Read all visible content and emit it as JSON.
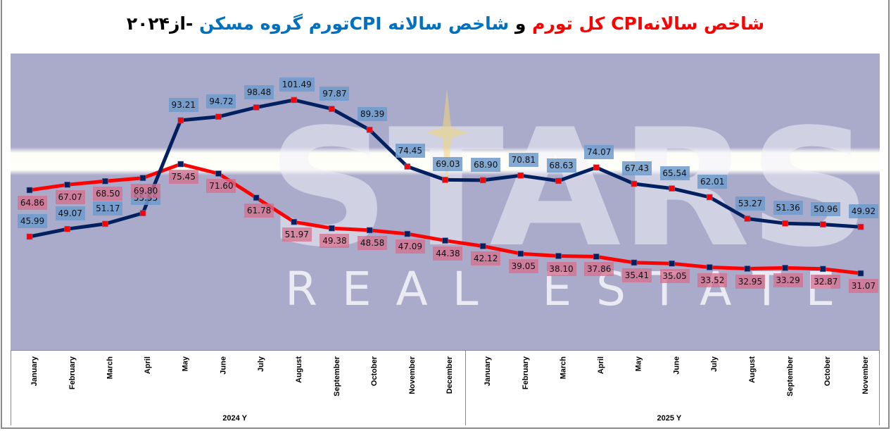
{
  "title": {
    "part_red_1": "شاخص سالانهCPI کل تورم",
    "part_black_1": " و ",
    "part_blue": "شاخص سالانه CPIتورم گروه مسکن",
    "part_black_2": "  -از۲۰۲۴"
  },
  "watermark": {
    "brand": "STARS",
    "subtitle": "REAL ESTATE"
  },
  "x_axis": {
    "year_groups": [
      {
        "label": "2024  Y",
        "months": [
          "January",
          "February",
          "March",
          "April",
          "May",
          "June",
          "July",
          "August",
          "September",
          "October",
          "November",
          "December"
        ]
      },
      {
        "label": "2025 Y",
        "months": [
          "January",
          "February",
          "March",
          "April",
          "May",
          "June",
          "July",
          "August",
          "September",
          "October",
          "November"
        ]
      }
    ]
  },
  "colors": {
    "plot_bg": "#aaaaca",
    "housing_line": "#002060",
    "housing_marker": "#ff0000",
    "total_line": "#ff0000",
    "total_marker": "#002060",
    "housing_label_bg": "#6e9bcd",
    "total_label_bg": "#d76e8c"
  },
  "chart_data": {
    "type": "line",
    "title": "شاخص سالانهCPI کل تورم و شاخص سالانه CPIتورم گروه مسکن -از۲۰۲۴",
    "xlabel": "",
    "ylabel": "",
    "grid": false,
    "legend": "none (series identified by title colors: red = total CPI inflation, blue = housing group CPI inflation)",
    "categories": [
      "2024 January",
      "2024 February",
      "2024 March",
      "2024 April",
      "2024 May",
      "2024 June",
      "2024 July",
      "2024 August",
      "2024 September",
      "2024 October",
      "2024 November",
      "2024 December",
      "2025 January",
      "2025 February",
      "2025 March",
      "2025 April",
      "2025 May",
      "2025 June",
      "2025 July",
      "2025 August",
      "2025 September",
      "2025 October",
      "2025 November"
    ],
    "series": [
      {
        "name": "شاخص سالانه CPI تورم گروه مسکن (Housing group annual CPI inflation)",
        "color": "#002060",
        "values": [
          45.99,
          49.07,
          51.17,
          55.55,
          93.21,
          94.72,
          98.48,
          101.49,
          97.87,
          89.39,
          74.45,
          69.03,
          68.9,
          70.81,
          68.63,
          74.07,
          67.43,
          65.54,
          62.01,
          53.27,
          51.36,
          50.96,
          49.92
        ],
        "labels": [
          "45.99",
          "49.07",
          "51.17",
          "55.55",
          "93.21",
          "94.72",
          "98.48",
          "101.49",
          "97.87",
          "89.39",
          "74.45",
          "69.03",
          "68.90",
          "70.81",
          "68.63",
          "74.07",
          "67.43",
          "65.54",
          "62.01",
          "53.27",
          "51.36",
          "50.96",
          "49.92"
        ]
      },
      {
        "name": "شاخص سالانه CPI کل تورم (Total annual CPI inflation)",
        "color": "#ff0000",
        "values": [
          64.86,
          67.07,
          68.5,
          69.8,
          75.45,
          71.6,
          61.78,
          51.97,
          49.38,
          48.58,
          47.09,
          44.38,
          42.12,
          39.05,
          38.1,
          37.86,
          35.41,
          35.05,
          33.52,
          32.95,
          33.29,
          32.87,
          31.07
        ],
        "labels": [
          "64.86",
          "67.07",
          "68.50",
          "69.80",
          "75.45",
          "71.60",
          "61.78",
          "51.97",
          "49.38",
          "48.58",
          "47.09",
          "44.38",
          "42.12",
          "39.05",
          "38.10",
          "37.86",
          "35.41",
          "35.05",
          "33.52",
          "32.95",
          "33.29",
          "32.87",
          "31.07"
        ]
      }
    ],
    "ylim": [
      0,
      120
    ]
  }
}
